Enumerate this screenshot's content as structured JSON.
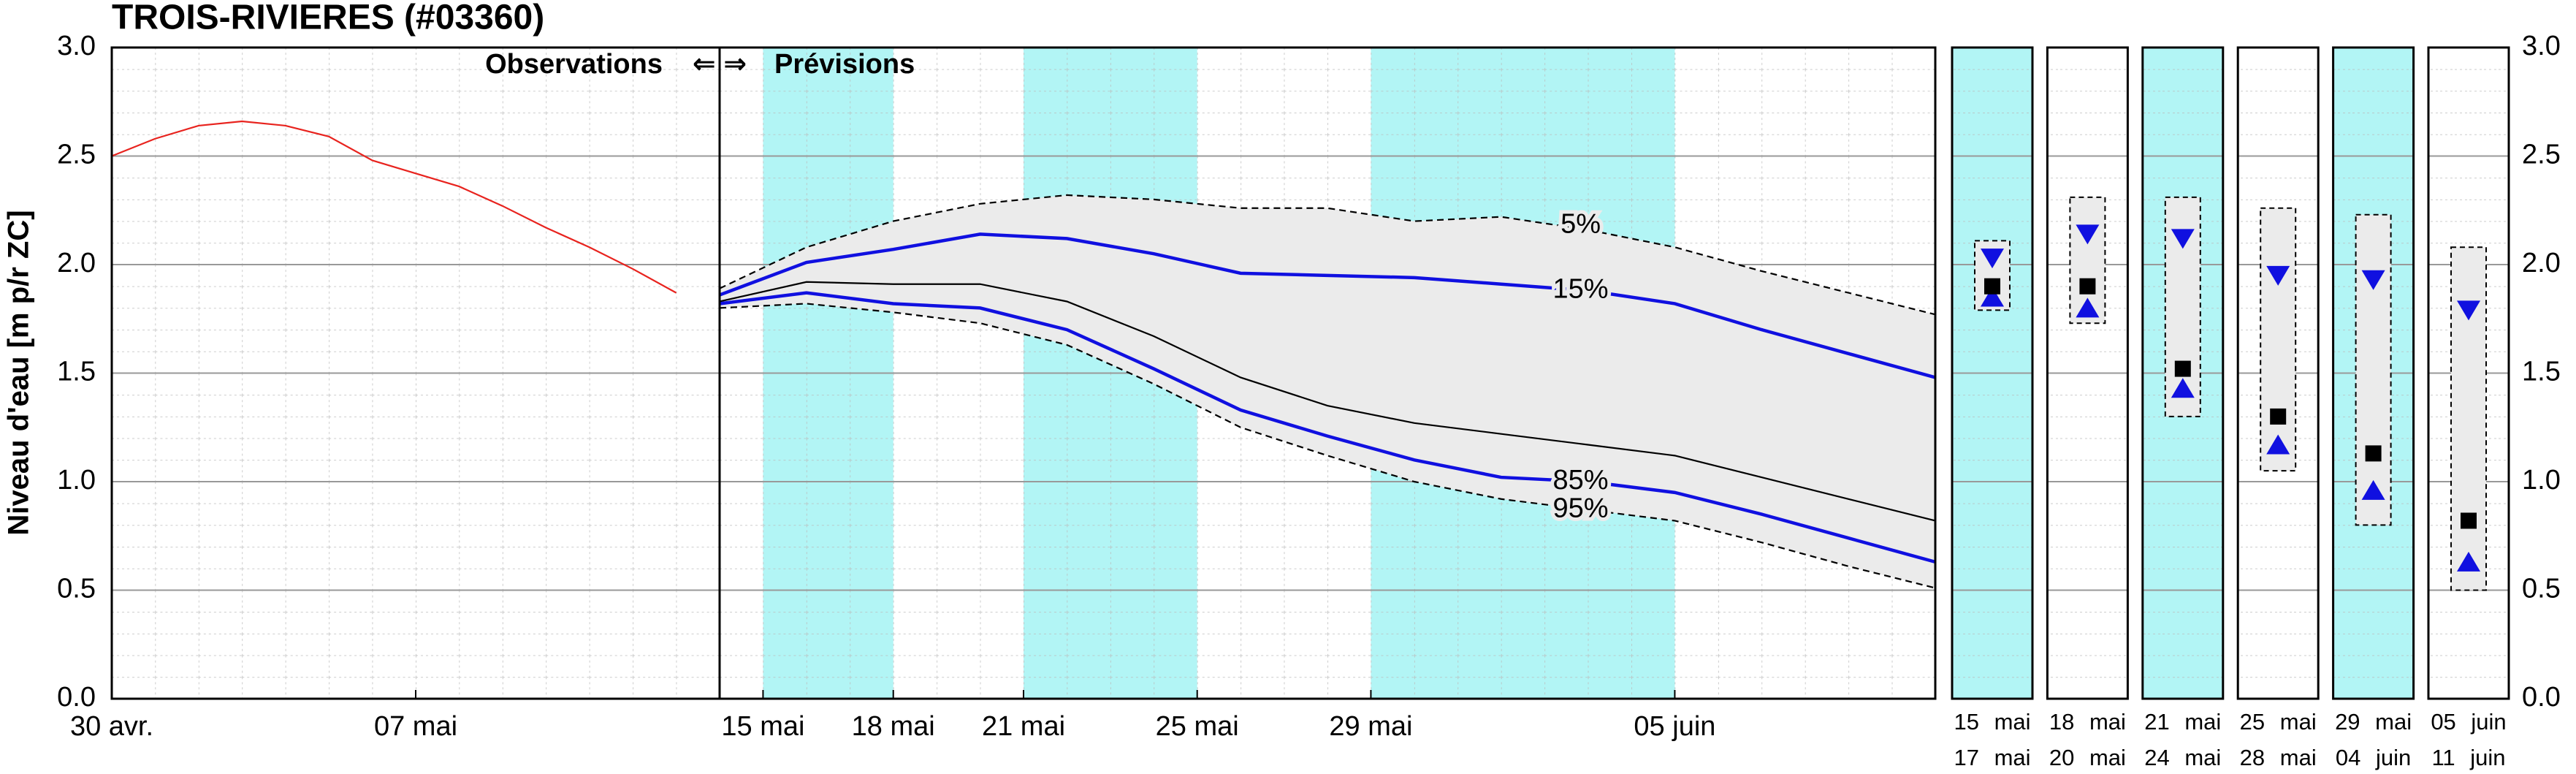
{
  "chart_data": [
    {
      "type": "line",
      "title": "TROIS-RIVIERES (#03360)",
      "ylabel": "Niveau d'eau [m p/r ZC]",
      "annotations": {
        "left": "Observations",
        "arrows": "⇐ ⇒",
        "right": "Prévisions"
      },
      "now": 14,
      "bands": [
        [
          15,
          18
        ],
        [
          21,
          25
        ],
        [
          29,
          36
        ]
      ],
      "band_color": "#b2f5f5",
      "range_color": "#ebebeb",
      "xlim": [
        0,
        42
      ],
      "xticks": [
        {
          "value": 0,
          "label": "30 avr."
        },
        {
          "value": 7,
          "label": "07 mai"
        },
        {
          "value": 15,
          "label": "15 mai"
        },
        {
          "value": 18,
          "label": "18 mai"
        },
        {
          "value": 21,
          "label": "21 mai"
        },
        {
          "value": 25,
          "label": "25 mai"
        },
        {
          "value": 29,
          "label": "29 mai"
        },
        {
          "value": 36,
          "label": "05 juin"
        }
      ],
      "ylim": [
        0,
        3
      ],
      "yticks": [
        {
          "value": 0,
          "label": "0.0"
        },
        {
          "value": 0.5,
          "label": "0.5"
        },
        {
          "value": 1,
          "label": "1.0"
        },
        {
          "value": 1.5,
          "label": "1.5"
        },
        {
          "value": 2,
          "label": "2.0"
        },
        {
          "value": 2.5,
          "label": "2.5"
        },
        {
          "value": 3,
          "label": "3.0"
        }
      ],
      "grid": true,
      "forecast_x": [
        14,
        16,
        18,
        20,
        22,
        24,
        26,
        28,
        30,
        32,
        34,
        36,
        38,
        40,
        42
      ],
      "series": [
        {
          "color": "#e8231e",
          "x": [
            0,
            1,
            2,
            3,
            4,
            5,
            6,
            7,
            8,
            9,
            10,
            11,
            12,
            13
          ],
          "values": [
            2.5,
            2.58,
            2.64,
            2.66,
            2.64,
            2.59,
            2.48,
            2.42,
            2.36,
            2.27,
            2.17,
            2.08,
            1.98,
            1.87
          ]
        },
        {
          "name": "5%",
          "color": "#000000",
          "dash": true,
          "values": [
            1.89,
            2.08,
            2.2,
            2.28,
            2.32,
            2.3,
            2.26,
            2.26,
            2.2,
            2.22,
            2.16,
            2.08,
            1.97,
            1.87,
            1.77
          ]
        },
        {
          "name": "15%",
          "color": "#1010e0",
          "values": [
            1.86,
            2.01,
            2.07,
            2.14,
            2.12,
            2.05,
            1.96,
            1.95,
            1.94,
            1.91,
            1.88,
            1.82,
            1.7,
            1.59,
            1.48
          ]
        },
        {
          "color": "#000000",
          "values": [
            1.83,
            1.92,
            1.91,
            1.91,
            1.83,
            1.67,
            1.48,
            1.35,
            1.27,
            1.22,
            1.17,
            1.12,
            1.02,
            0.92,
            0.82
          ]
        },
        {
          "name": "85%",
          "color": "#1010e0",
          "values": [
            1.82,
            1.87,
            1.82,
            1.8,
            1.7,
            1.52,
            1.33,
            1.21,
            1.1,
            1.02,
            1.0,
            0.95,
            0.85,
            0.74,
            0.63
          ]
        },
        {
          "name": "95%",
          "color": "#000000",
          "dash": true,
          "values": [
            1.8,
            1.82,
            1.78,
            1.73,
            1.63,
            1.45,
            1.25,
            1.12,
            1.0,
            0.92,
            0.87,
            0.82,
            0.72,
            0.61,
            0.51
          ]
        }
      ]
    },
    {
      "type": "range",
      "categories": [
        [
          "15 mai",
          "17 mai"
        ],
        [
          "18 mai",
          "20 mai"
        ],
        [
          "21 mai",
          "24 mai"
        ],
        [
          "25 mai",
          "28 mai"
        ],
        [
          "29 mai",
          "04 juin"
        ],
        [
          "05 juin",
          "11 juin"
        ]
      ],
      "shaded": [
        true,
        false,
        true,
        false,
        true,
        false
      ],
      "max": [
        2.11,
        2.31,
        2.31,
        2.26,
        2.23,
        2.08
      ],
      "upper": [
        2.03,
        2.14,
        2.12,
        1.95,
        1.93,
        1.79
      ],
      "median": [
        1.9,
        1.9,
        1.52,
        1.3,
        1.13,
        0.82
      ],
      "lower": [
        1.85,
        1.8,
        1.43,
        1.17,
        0.96,
        0.63
      ],
      "min": [
        1.79,
        1.73,
        1.3,
        1.05,
        0.8,
        0.5
      ],
      "marker_color": "#1010e0",
      "ylim": [
        0,
        3
      ],
      "yticks": [
        {
          "value": 0,
          "label": "0.0"
        },
        {
          "value": 0.5,
          "label": "0.5"
        },
        {
          "value": 1,
          "label": "1.0"
        },
        {
          "value": 1.5,
          "label": "1.5"
        },
        {
          "value": 2,
          "label": "2.0"
        },
        {
          "value": 2.5,
          "label": "2.5"
        },
        {
          "value": 3,
          "label": "3.0"
        }
      ]
    }
  ]
}
